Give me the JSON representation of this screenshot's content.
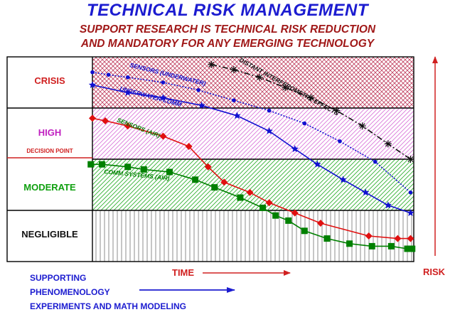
{
  "title": "TECHNICAL RISK MANAGEMENT",
  "subtitle_line1": "SUPPORT RESEARCH IS TECHNICAL RISK REDUCTION",
  "subtitle_line2": "AND MANDATORY FOR ANY EMERGING TECHNOLOGY",
  "levels": {
    "crisis": "CRISIS",
    "high": "HIGH",
    "decision_point": "DECISION POINT",
    "moderate": "MODERATE",
    "negligible": "NEGLIGIBLE"
  },
  "footer": {
    "line1": "SUPPORTING",
    "line2": "PHENOMENOLOGY",
    "line3": "EXPERIMENTS AND MATH MODELING"
  },
  "x_axis_label": "TIME",
  "y_axis_label": "RISK",
  "colors": {
    "crisis": "#c04060",
    "high": "#d870d8",
    "moderate": "#30b030",
    "negligible": "#606060"
  },
  "chart_data": {
    "type": "line",
    "xlabel": "TIME",
    "ylabel": "RISK",
    "bands": [
      "NEGLIGIBLE",
      "MODERATE",
      "HIGH",
      "CRISIS"
    ],
    "ylim": [
      0,
      4
    ],
    "xlim": [
      0,
      10
    ],
    "series": [
      {
        "name": "DISTANT INTERFEROMETRY EFFECTS",
        "color": "#111111",
        "marker": "asterisk",
        "dash": "8,3,2,3",
        "x": [
          3.7,
          4.4,
          5.2,
          6.0,
          6.8,
          7.6,
          8.4,
          9.2,
          9.9
        ],
        "y": [
          3.85,
          3.75,
          3.6,
          3.4,
          3.2,
          2.95,
          2.65,
          2.3,
          2.0
        ]
      },
      {
        "name": "SENSORS (UNDERWATER)",
        "color": "#1010d0",
        "marker": "dot",
        "dash": "2,2",
        "x": [
          0.0,
          0.5,
          1.1,
          2.2,
          3.3,
          4.4,
          5.5,
          6.6,
          7.7,
          8.8,
          9.9
        ],
        "y": [
          3.7,
          3.65,
          3.6,
          3.5,
          3.35,
          3.15,
          2.95,
          2.7,
          2.35,
          1.95,
          1.35
        ]
      },
      {
        "name": "UNDERWATER COMM",
        "color": "#1010d0",
        "marker": "star",
        "dash": "",
        "x": [
          0.0,
          1.1,
          2.2,
          3.4,
          4.5,
          5.5,
          6.3,
          7.0,
          7.8,
          8.5,
          9.2,
          9.9
        ],
        "y": [
          3.45,
          3.3,
          3.2,
          3.05,
          2.85,
          2.55,
          2.2,
          1.9,
          1.6,
          1.35,
          1.1,
          0.95
        ]
      },
      {
        "name": "SENSORS (AIR)",
        "color": "#e01010",
        "marker": "diamond",
        "dash": "",
        "x": [
          0.0,
          0.4,
          1.1,
          2.2,
          3.0,
          3.6,
          4.1,
          4.9,
          5.5,
          6.3,
          7.1,
          8.6,
          9.5,
          9.9
        ],
        "y": [
          2.8,
          2.75,
          2.65,
          2.45,
          2.25,
          1.85,
          1.55,
          1.35,
          1.15,
          0.95,
          0.75,
          0.5,
          0.45,
          0.45
        ]
      },
      {
        "name": "COMM SYSTEMS (AIR)",
        "color": "#008000",
        "marker": "square",
        "dash": "",
        "x": [
          -0.05,
          0.3,
          1.1,
          1.6,
          2.4,
          3.2,
          3.8,
          4.6,
          5.3,
          5.7,
          6.1,
          6.6,
          7.3,
          8.0,
          8.7,
          9.3,
          9.8,
          9.95
        ],
        "y": [
          1.9,
          1.9,
          1.85,
          1.8,
          1.75,
          1.6,
          1.45,
          1.25,
          1.05,
          0.9,
          0.8,
          0.6,
          0.45,
          0.35,
          0.3,
          0.3,
          0.25,
          0.25
        ]
      }
    ]
  }
}
